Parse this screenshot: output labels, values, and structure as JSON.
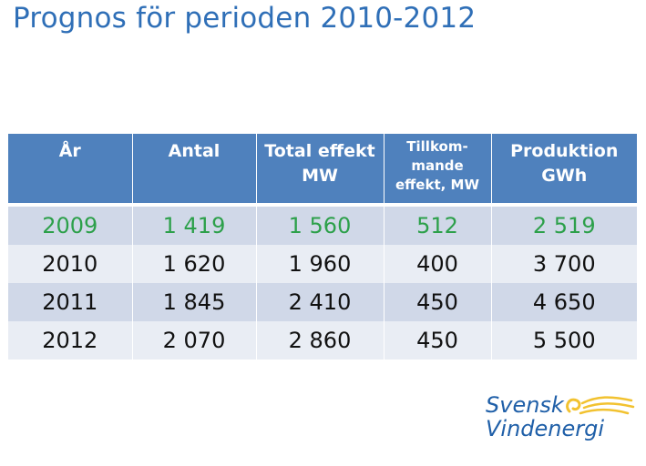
{
  "title": "Prognos för perioden 2010-2012",
  "table": {
    "headers": [
      [
        "År"
      ],
      [
        "Antal"
      ],
      [
        "Total effekt",
        "MW"
      ],
      [
        "Tillkom-",
        "mande",
        "effekt, MW"
      ],
      [
        "Produktion",
        "GWh"
      ]
    ],
    "rows": [
      [
        "2009",
        "1 419",
        "1 560",
        "512",
        "2 519"
      ],
      [
        "2010",
        "1 620",
        "1 960",
        "400",
        "3 700"
      ],
      [
        "2011",
        "1 845",
        "2 410",
        "450",
        "4 650"
      ],
      [
        "2012",
        "2 070",
        "2 860",
        "450",
        "5 500"
      ]
    ],
    "highlight_row_color": "#2ca04a",
    "header_bg": "#4f81bd"
  },
  "logo": {
    "line1": "Svensk",
    "line2": "Vindenergi",
    "icon": "wind-swirl-icon",
    "colors": {
      "text": "#1f5fa8",
      "mark": "#f2c230"
    }
  }
}
